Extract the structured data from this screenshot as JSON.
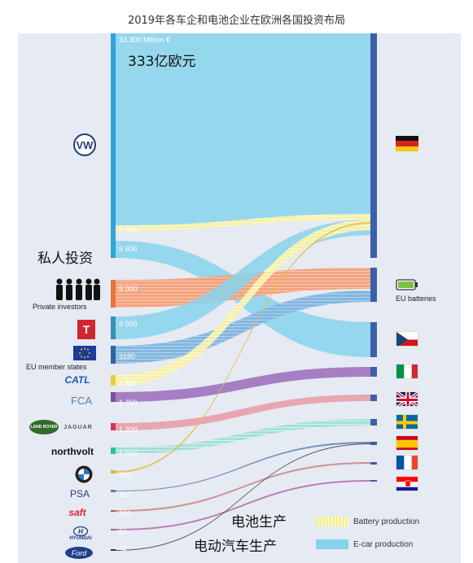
{
  "title": "2019年各车企和电池企业在欧洲各国投资布局",
  "annotations": {
    "top_value_cn": "333亿欧元",
    "private_cn": "私人投资",
    "battery_cn": "电池生产",
    "ev_cn": "电动汽车生产"
  },
  "labels": {
    "private_investors": "Private investors",
    "eu_member_states": "EU member states",
    "eu_batteries": "EU batteries"
  },
  "legend": {
    "battery": "Battery production",
    "ev": "E-car production",
    "battery_color": "#f5ef8f",
    "ev_color": "#86d3ec"
  },
  "chart_data": {
    "type": "sankey",
    "title": "2019年各车企和电池企业在欧洲各国投资布局",
    "unit": "Million €",
    "sources": [
      {
        "name": "Volkswagen",
        "logo": "vw-logo",
        "values": [
          "33 300 Million €",
          "1 000",
          "6 600"
        ],
        "color": "#2fa3db"
      },
      {
        "name": "Private investors",
        "values": [
          "5 000"
        ],
        "color": "#e8743f"
      },
      {
        "name": "Tesla",
        "logo": "tesla-logo",
        "brand": "TESLA",
        "values": [
          "4 000"
        ],
        "color": "#3a8fb5"
      },
      {
        "name": "EU member states",
        "values": [
          "3180"
        ],
        "color": "#2e63a6"
      },
      {
        "name": "CATL",
        "brand": "CATL",
        "values": [
          "1 800"
        ],
        "color": "#e8d232"
      },
      {
        "name": "FCA",
        "brand": "FCA",
        "values": [
          "1 750"
        ],
        "color": "#7d4ea0"
      },
      {
        "name": "Land Rover / Jaguar",
        "brand": "JAGUAR",
        "values": [
          "1 200"
        ],
        "color": "#d8334a"
      },
      {
        "name": "Northvolt",
        "brand": "northvolt",
        "values": [
          "1 000"
        ],
        "color": "#2bbfa8"
      },
      {
        "name": "BMW",
        "logo": "bmw-logo",
        "values": [
          "400"
        ],
        "color": "#e0b23a"
      },
      {
        "name": "PSA",
        "brand": "PSA",
        "values": [
          "332"
        ],
        "color": "#5a7fb2"
      },
      {
        "name": "Saft",
        "brand": "saft",
        "values": [
          "200"
        ],
        "color": "#c94a4a"
      },
      {
        "name": "Hyundai",
        "brand": "HYUNDAI",
        "values": [
          "80"
        ],
        "color": "#a15b9b"
      },
      {
        "name": "Ford",
        "brand": "Ford",
        "values": [
          "42"
        ],
        "color": "#333333"
      }
    ],
    "targets": [
      "Germany",
      "EU batteries",
      "Czechia",
      "Italy",
      "United Kingdom",
      "Sweden",
      "Spain",
      "France",
      "Croatia"
    ],
    "flows": [
      {
        "from": "Volkswagen",
        "to": "Germany",
        "value": 33300,
        "kind": "ev"
      },
      {
        "from": "Volkswagen",
        "to": "Germany",
        "value": 1000,
        "kind": "battery"
      },
      {
        "from": "Volkswagen",
        "to": "Czechia",
        "value": 6600,
        "kind": "ev"
      },
      {
        "from": "Private investors",
        "to": "EU batteries",
        "value": 5000,
        "kind": "battery"
      },
      {
        "from": "Tesla",
        "to": "Germany",
        "value": 4000,
        "kind": "ev"
      },
      {
        "from": "EU member states",
        "to": "EU batteries",
        "value": 3180,
        "kind": "battery"
      },
      {
        "from": "CATL",
        "to": "Germany",
        "value": 1800,
        "kind": "battery"
      },
      {
        "from": "FCA",
        "to": "Italy",
        "value": 1750,
        "kind": "ev"
      },
      {
        "from": "Land Rover / Jaguar",
        "to": "United Kingdom",
        "value": 1200,
        "kind": "ev"
      },
      {
        "from": "Northvolt",
        "to": "Sweden",
        "value": 1000,
        "kind": "battery"
      },
      {
        "from": "BMW",
        "to": "Germany",
        "value": 400,
        "kind": "battery"
      },
      {
        "from": "PSA",
        "to": "Spain",
        "value": 332,
        "kind": "ev"
      },
      {
        "from": "Saft",
        "to": "France",
        "value": 200,
        "kind": "battery"
      },
      {
        "from": "Hyundai",
        "to": "Croatia",
        "value": 80,
        "kind": "ev"
      },
      {
        "from": "Ford",
        "to": "Spain",
        "value": 42,
        "kind": "ev"
      }
    ]
  }
}
